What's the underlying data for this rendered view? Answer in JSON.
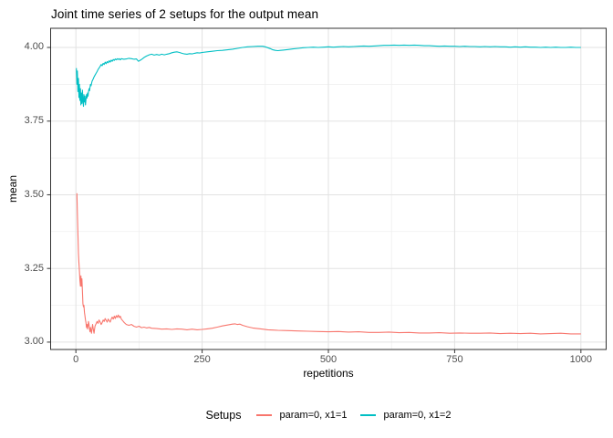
{
  "colors": {
    "background": "#FFFFFF",
    "grid_major": "#E2E2E2",
    "grid_minor": "#EDEDED",
    "panel_border": "#333333",
    "tick_mark": "#333333",
    "axis_text": "#4D4D4D",
    "title_text": "#000000"
  },
  "chart_data": {
    "type": "line",
    "title": "Joint time series of 2 setups for the output mean",
    "xlabel": "repetitions",
    "ylabel": "mean",
    "xlim": [
      -50,
      1050
    ],
    "ylim": [
      2.975,
      4.065
    ],
    "grid": true,
    "x_ticks": {
      "values": [
        0,
        250,
        500,
        750,
        1000
      ],
      "labels": [
        "0",
        "250",
        "500",
        "750",
        "1000"
      ]
    },
    "y_ticks": {
      "values": [
        3.0,
        3.25,
        3.5,
        3.75,
        4.0
      ],
      "labels": [
        "3.00",
        "3.25",
        "3.50",
        "3.75",
        "4.00"
      ]
    },
    "x_minor": [
      125,
      375,
      625,
      875
    ],
    "y_minor": [
      3.125,
      3.375,
      3.625,
      3.875
    ],
    "legend": {
      "title": "Setups",
      "position": "bottom"
    },
    "series": [
      {
        "name": "param=0, x1=1",
        "color": "#F8766D",
        "points": [
          [
            2,
            3.505
          ],
          [
            3,
            3.44
          ],
          [
            4,
            3.37
          ],
          [
            5,
            3.3
          ],
          [
            6,
            3.27
          ],
          [
            7,
            3.24
          ],
          [
            8,
            3.21
          ],
          [
            9,
            3.19
          ],
          [
            10,
            3.225
          ],
          [
            11,
            3.19
          ],
          [
            12,
            3.215
          ],
          [
            13,
            3.17
          ],
          [
            14,
            3.13
          ],
          [
            15,
            3.12
          ],
          [
            16,
            3.125
          ],
          [
            17,
            3.1
          ],
          [
            18,
            3.09
          ],
          [
            19,
            3.075
          ],
          [
            20,
            3.065
          ],
          [
            21,
            3.05
          ],
          [
            22,
            3.06
          ],
          [
            23,
            3.045
          ],
          [
            24,
            3.055
          ],
          [
            25,
            3.07
          ],
          [
            26,
            3.06
          ],
          [
            27,
            3.045
          ],
          [
            28,
            3.035
          ],
          [
            29,
            3.05
          ],
          [
            30,
            3.04
          ],
          [
            31,
            3.03
          ],
          [
            32,
            3.045
          ],
          [
            33,
            3.06
          ],
          [
            34,
            3.05
          ],
          [
            35,
            3.038
          ],
          [
            36,
            3.03
          ],
          [
            37,
            3.045
          ],
          [
            38,
            3.055
          ],
          [
            40,
            3.062
          ],
          [
            42,
            3.07
          ],
          [
            44,
            3.064
          ],
          [
            46,
            3.075
          ],
          [
            48,
            3.068
          ],
          [
            50,
            3.06
          ],
          [
            52,
            3.066
          ],
          [
            54,
            3.075
          ],
          [
            56,
            3.07
          ],
          [
            58,
            3.08
          ],
          [
            60,
            3.074
          ],
          [
            62,
            3.068
          ],
          [
            64,
            3.078
          ],
          [
            66,
            3.073
          ],
          [
            68,
            3.068
          ],
          [
            70,
            3.078
          ],
          [
            72,
            3.085
          ],
          [
            74,
            3.078
          ],
          [
            76,
            3.088
          ],
          [
            78,
            3.08
          ],
          [
            80,
            3.09
          ],
          [
            82,
            3.084
          ],
          [
            84,
            3.092
          ],
          [
            86,
            3.083
          ],
          [
            88,
            3.088
          ],
          [
            90,
            3.078
          ],
          [
            93,
            3.072
          ],
          [
            96,
            3.066
          ],
          [
            100,
            3.06
          ],
          [
            105,
            3.057
          ],
          [
            110,
            3.06
          ],
          [
            115,
            3.054
          ],
          [
            120,
            3.051
          ],
          [
            125,
            3.054
          ],
          [
            130,
            3.049
          ],
          [
            135,
            3.051
          ],
          [
            140,
            3.048
          ],
          [
            145,
            3.05
          ],
          [
            150,
            3.047
          ],
          [
            160,
            3.046
          ],
          [
            170,
            3.044
          ],
          [
            180,
            3.045
          ],
          [
            190,
            3.043
          ],
          [
            200,
            3.045
          ],
          [
            210,
            3.044
          ],
          [
            220,
            3.042
          ],
          [
            230,
            3.044
          ],
          [
            240,
            3.042
          ],
          [
            250,
            3.043
          ],
          [
            260,
            3.045
          ],
          [
            270,
            3.047
          ],
          [
            280,
            3.051
          ],
          [
            290,
            3.055
          ],
          [
            300,
            3.058
          ],
          [
            310,
            3.061
          ],
          [
            315,
            3.062
          ],
          [
            320,
            3.06
          ],
          [
            325,
            3.061
          ],
          [
            330,
            3.057
          ],
          [
            340,
            3.052
          ],
          [
            350,
            3.048
          ],
          [
            360,
            3.046
          ],
          [
            370,
            3.044
          ],
          [
            380,
            3.042
          ],
          [
            390,
            3.041
          ],
          [
            400,
            3.04
          ],
          [
            420,
            3.039
          ],
          [
            440,
            3.038
          ],
          [
            460,
            3.037
          ],
          [
            480,
            3.036
          ],
          [
            500,
            3.035
          ],
          [
            520,
            3.036
          ],
          [
            540,
            3.034
          ],
          [
            560,
            3.035
          ],
          [
            580,
            3.033
          ],
          [
            600,
            3.033
          ],
          [
            620,
            3.034
          ],
          [
            640,
            3.032
          ],
          [
            660,
            3.033
          ],
          [
            680,
            3.031
          ],
          [
            700,
            3.031
          ],
          [
            720,
            3.032
          ],
          [
            740,
            3.03
          ],
          [
            760,
            3.031
          ],
          [
            780,
            3.03
          ],
          [
            800,
            3.03
          ],
          [
            820,
            3.031
          ],
          [
            840,
            3.029
          ],
          [
            860,
            3.03
          ],
          [
            880,
            3.029
          ],
          [
            900,
            3.03
          ],
          [
            920,
            3.028
          ],
          [
            940,
            3.029
          ],
          [
            960,
            3.03
          ],
          [
            980,
            3.028
          ],
          [
            1000,
            3.028
          ]
        ]
      },
      {
        "name": "param=0, x1=2",
        "color": "#00BFC4",
        "points": [
          [
            1,
            3.93
          ],
          [
            2,
            3.875
          ],
          [
            3,
            3.92
          ],
          [
            4,
            3.85
          ],
          [
            5,
            3.895
          ],
          [
            6,
            3.83
          ],
          [
            7,
            3.875
          ],
          [
            8,
            3.82
          ],
          [
            9,
            3.86
          ],
          [
            10,
            3.805
          ],
          [
            11,
            3.845
          ],
          [
            12,
            3.81
          ],
          [
            13,
            3.855
          ],
          [
            14,
            3.82
          ],
          [
            15,
            3.8
          ],
          [
            16,
            3.84
          ],
          [
            17,
            3.815
          ],
          [
            18,
            3.835
          ],
          [
            19,
            3.805
          ],
          [
            20,
            3.825
          ],
          [
            21,
            3.84
          ],
          [
            22,
            3.828
          ],
          [
            23,
            3.845
          ],
          [
            24,
            3.835
          ],
          [
            25,
            3.85
          ],
          [
            26,
            3.86
          ],
          [
            27,
            3.853
          ],
          [
            28,
            3.865
          ],
          [
            29,
            3.875
          ],
          [
            30,
            3.87
          ],
          [
            32,
            3.885
          ],
          [
            34,
            3.892
          ],
          [
            36,
            3.9
          ],
          [
            38,
            3.906
          ],
          [
            40,
            3.912
          ],
          [
            42,
            3.918
          ],
          [
            44,
            3.925
          ],
          [
            46,
            3.93
          ],
          [
            48,
            3.936
          ],
          [
            50,
            3.942
          ],
          [
            52,
            3.938
          ],
          [
            54,
            3.946
          ],
          [
            56,
            3.942
          ],
          [
            58,
            3.95
          ],
          [
            60,
            3.945
          ],
          [
            62,
            3.952
          ],
          [
            64,
            3.948
          ],
          [
            66,
            3.955
          ],
          [
            68,
            3.95
          ],
          [
            70,
            3.957
          ],
          [
            72,
            3.953
          ],
          [
            74,
            3.959
          ],
          [
            76,
            3.956
          ],
          [
            78,
            3.961
          ],
          [
            80,
            3.958
          ],
          [
            82,
            3.962
          ],
          [
            84,
            3.959
          ],
          [
            86,
            3.962
          ],
          [
            88,
            3.958
          ],
          [
            90,
            3.962
          ],
          [
            95,
            3.96
          ],
          [
            100,
            3.961
          ],
          [
            105,
            3.963
          ],
          [
            110,
            3.962
          ],
          [
            115,
            3.96
          ],
          [
            120,
            3.961
          ],
          [
            124,
            3.953
          ],
          [
            128,
            3.957
          ],
          [
            132,
            3.962
          ],
          [
            136,
            3.967
          ],
          [
            140,
            3.971
          ],
          [
            145,
            3.975
          ],
          [
            150,
            3.977
          ],
          [
            155,
            3.974
          ],
          [
            160,
            3.976
          ],
          [
            165,
            3.974
          ],
          [
            170,
            3.977
          ],
          [
            175,
            3.975
          ],
          [
            180,
            3.977
          ],
          [
            185,
            3.979
          ],
          [
            190,
            3.982
          ],
          [
            195,
            3.984
          ],
          [
            200,
            3.985
          ],
          [
            205,
            3.983
          ],
          [
            210,
            3.98
          ],
          [
            215,
            3.978
          ],
          [
            220,
            3.977
          ],
          [
            225,
            3.979
          ],
          [
            230,
            3.978
          ],
          [
            235,
            3.98
          ],
          [
            240,
            3.982
          ],
          [
            245,
            3.981
          ],
          [
            250,
            3.983
          ],
          [
            260,
            3.985
          ],
          [
            270,
            3.987
          ],
          [
            280,
            3.989
          ],
          [
            290,
            3.99
          ],
          [
            300,
            3.992
          ],
          [
            310,
            3.994
          ],
          [
            320,
            3.997
          ],
          [
            330,
            4.0
          ],
          [
            340,
            4.002
          ],
          [
            350,
            4.003
          ],
          [
            360,
            4.004
          ],
          [
            370,
            4.004
          ],
          [
            375,
            4.002
          ],
          [
            380,
            3.999
          ],
          [
            385,
            3.996
          ],
          [
            390,
            3.992
          ],
          [
            395,
            3.99
          ],
          [
            400,
            3.989
          ],
          [
            405,
            3.99
          ],
          [
            410,
            3.991
          ],
          [
            420,
            3.993
          ],
          [
            430,
            3.995
          ],
          [
            440,
            3.997
          ],
          [
            450,
            3.999
          ],
          [
            460,
            4.0
          ],
          [
            470,
            4.001
          ],
          [
            480,
            4.0
          ],
          [
            490,
            4.001
          ],
          [
            500,
            4.002
          ],
          [
            510,
            4.001
          ],
          [
            520,
            4.002
          ],
          [
            530,
            4.003
          ],
          [
            540,
            4.002
          ],
          [
            550,
            4.003
          ],
          [
            560,
            4.004
          ],
          [
            570,
            4.005
          ],
          [
            580,
            4.004
          ],
          [
            590,
            4.005
          ],
          [
            600,
            4.006
          ],
          [
            610,
            4.007
          ],
          [
            620,
            4.007
          ],
          [
            630,
            4.008
          ],
          [
            640,
            4.007
          ],
          [
            650,
            4.008
          ],
          [
            660,
            4.007
          ],
          [
            670,
            4.008
          ],
          [
            680,
            4.007
          ],
          [
            690,
            4.006
          ],
          [
            700,
            4.006
          ],
          [
            710,
            4.005
          ],
          [
            720,
            4.004
          ],
          [
            730,
            4.005
          ],
          [
            740,
            4.004
          ],
          [
            750,
            4.004
          ],
          [
            760,
            4.003
          ],
          [
            770,
            4.004
          ],
          [
            780,
            4.003
          ],
          [
            790,
            4.003
          ],
          [
            800,
            4.002
          ],
          [
            810,
            4.003
          ],
          [
            820,
            4.002
          ],
          [
            830,
            4.003
          ],
          [
            840,
            4.002
          ],
          [
            850,
            4.002
          ],
          [
            860,
            4.001
          ],
          [
            870,
            4.002
          ],
          [
            880,
            4.001
          ],
          [
            890,
            4.002
          ],
          [
            900,
            4.001
          ],
          [
            910,
            4.001
          ],
          [
            920,
            4.0
          ],
          [
            930,
            4.001
          ],
          [
            940,
            4.0
          ],
          [
            950,
            4.001
          ],
          [
            960,
            4.0
          ],
          [
            970,
            4.0
          ],
          [
            980,
            4.001
          ],
          [
            990,
            4.0
          ],
          [
            1000,
            4.0
          ]
        ]
      }
    ]
  }
}
